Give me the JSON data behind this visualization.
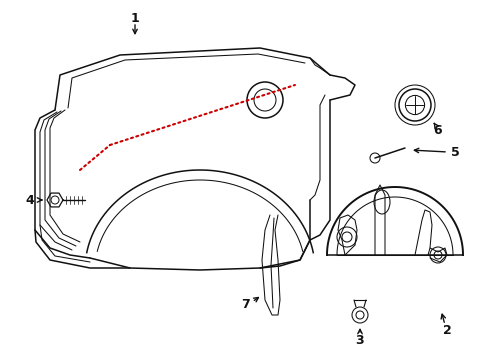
{
  "bg_color": "#ffffff",
  "line_color": "#111111",
  "red_color": "#cc0000",
  "label_color": "#000000",
  "figsize": [
    4.89,
    3.6
  ],
  "dpi": 100
}
